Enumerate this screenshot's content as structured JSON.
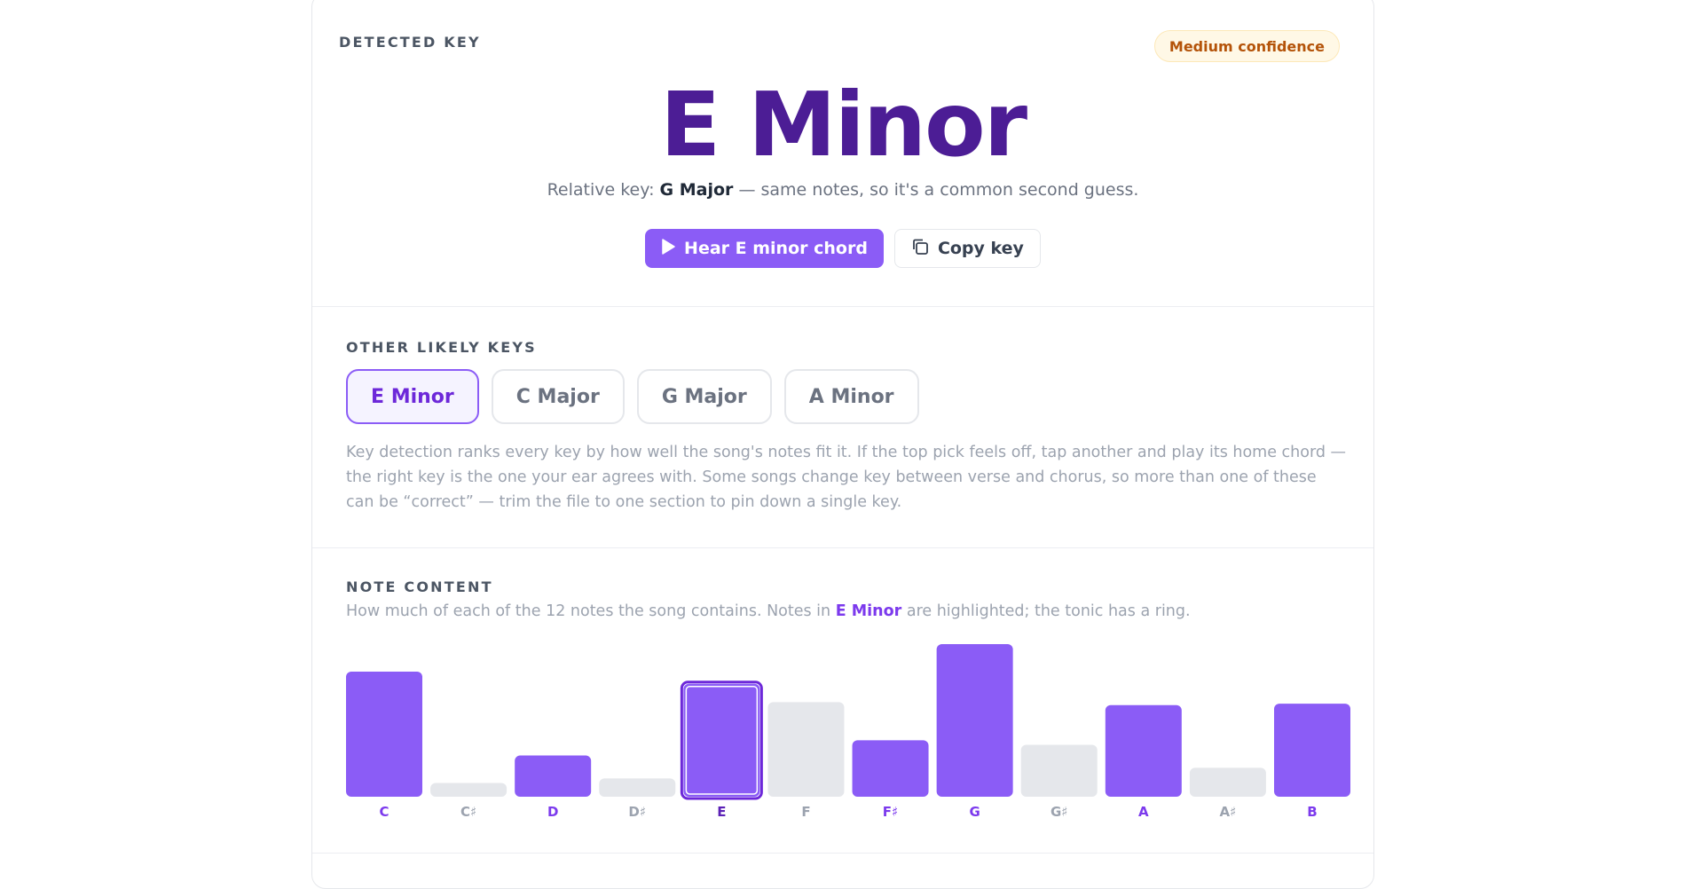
{
  "header": {
    "eyebrow": "DETECTED KEY",
    "confidence_badge": "Medium confidence",
    "key_title": "E Minor",
    "relative_prefix": "Relative key: ",
    "relative_key": "G Major",
    "relative_suffix": " — same notes, so it's a common second guess."
  },
  "actions": {
    "hear_label": "Hear E minor chord",
    "copy_label": "Copy key"
  },
  "other_keys": {
    "eyebrow": "OTHER LIKELY KEYS",
    "chips": [
      "E Minor",
      "C Major",
      "G Major",
      "A Minor"
    ],
    "active_index": 0,
    "explanation": "Key detection ranks every key by how well the song's notes fit it. If the top pick feels off, tap another and play its home chord — the right key is the one your ear agrees with. Some songs change key between verse and chorus, so more than one of these can be “correct” — trim the file to one section to pin down a single key."
  },
  "note_content": {
    "eyebrow": "NOTE CONTENT",
    "note_prefix": "How much of each of the 12 notes the song contains. Notes in ",
    "note_key": "E Minor",
    "note_suffix": " are highlighted; the tonic has a ring."
  },
  "colors": {
    "in_key": "#8b5cf6",
    "out_key": "#e5e7eb",
    "tonic_ring": "#6d28d9",
    "label_in": "#7c3aed",
    "label_out": "#9ca3af",
    "tonic_label": "#5b21b6"
  },
  "chart_data": {
    "type": "bar",
    "categories": [
      "C",
      "C♯",
      "D",
      "D♯",
      "E",
      "F",
      "F♯",
      "G",
      "G♯",
      "A",
      "A♯",
      "B"
    ],
    "values": [
      82,
      9,
      27,
      12,
      74,
      62,
      37,
      100,
      34,
      60,
      19,
      61
    ],
    "in_key": [
      true,
      false,
      true,
      false,
      true,
      false,
      true,
      true,
      false,
      true,
      false,
      true
    ],
    "tonic_index": 4,
    "ylim": [
      0,
      100
    ]
  }
}
